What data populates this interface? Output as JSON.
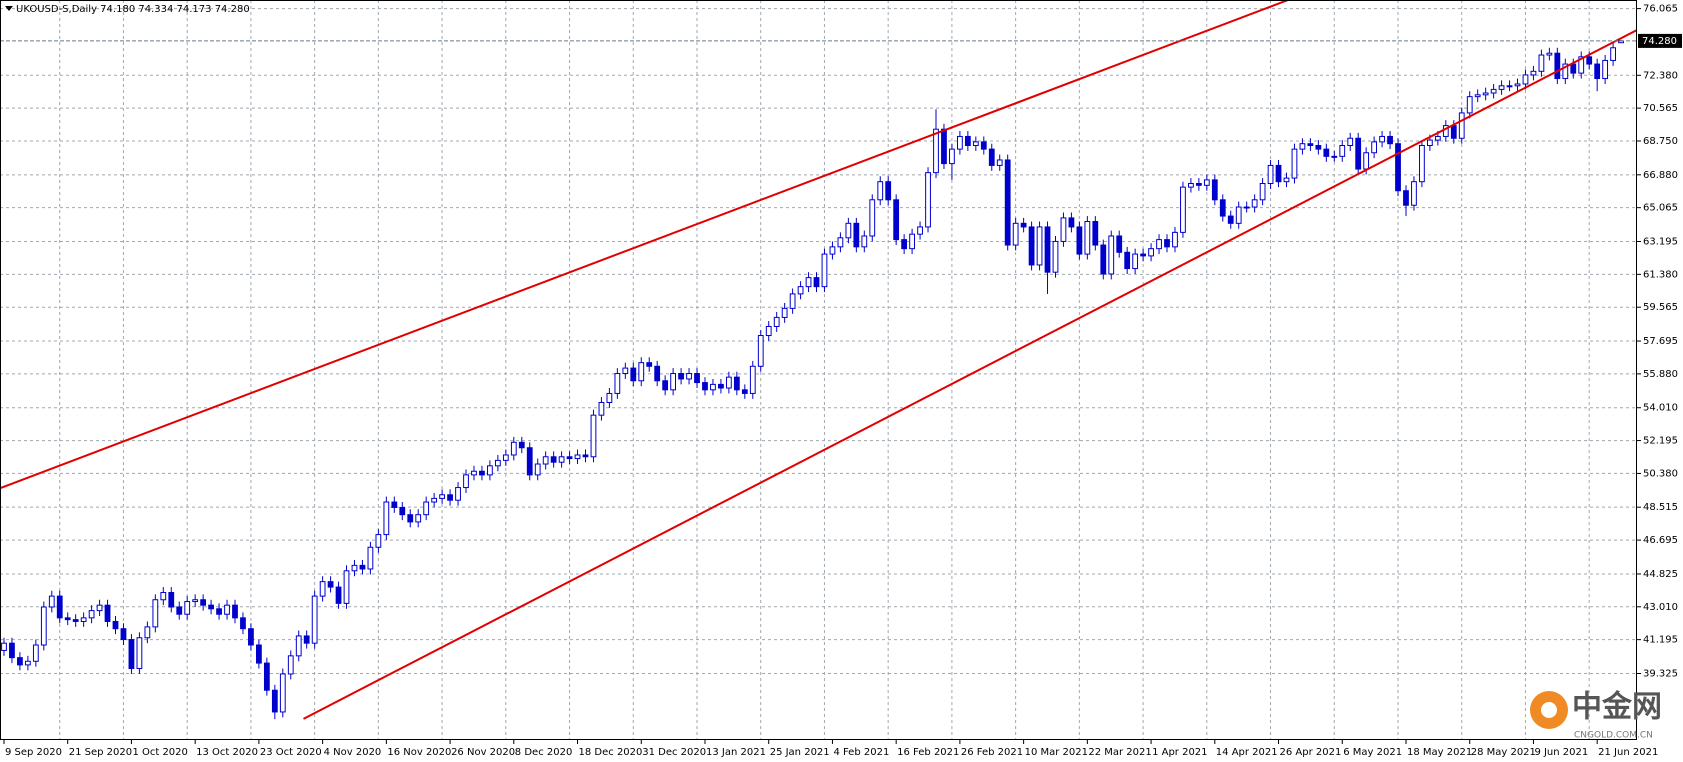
{
  "chart_data": {
    "type": "candlestick",
    "header": "UKOUSD-S,Daily  74.180 74.334 74.173 74.280",
    "up_color": "#ffffff",
    "down_color": "#0000cd",
    "wick_color": "#0000cd",
    "trendline_color": "#e00000",
    "grid": true,
    "xlim": [
      -0.5,
      205
    ],
    "ylim": [
      35.65,
      76.54
    ],
    "yticks": [
      76.065,
      {
        "value": 72.38,
        "label": "72.380"
      },
      70.565,
      {
        "value": 68.75,
        "label": "68.750"
      },
      {
        "value": 66.88,
        "label": "66.880"
      },
      65.065,
      63.195,
      {
        "value": 61.38,
        "label": "61.380"
      },
      59.565,
      57.695,
      {
        "value": 55.88,
        "label": "55.880"
      },
      {
        "value": 54.01,
        "label": "54.010"
      },
      52.195,
      {
        "value": 50.38,
        "label": "50.380"
      },
      48.515,
      46.695,
      44.825,
      {
        "value": 43.01,
        "label": "43.010"
      },
      41.195,
      39.325
    ],
    "xticks": [
      {
        "value": 0,
        "label": "9 Sep 2020"
      },
      {
        "value": 8,
        "label": "21 Sep 2020"
      },
      {
        "value": 16,
        "label": "1 Oct 2020"
      },
      {
        "value": 24,
        "label": "13 Oct 2020"
      },
      {
        "value": 32,
        "label": "23 Oct 2020"
      },
      {
        "value": 40,
        "label": "4 Nov 2020"
      },
      {
        "value": 48,
        "label": "16 Nov 2020"
      },
      {
        "value": 56,
        "label": "26 Nov 2020"
      },
      {
        "value": 64,
        "label": "8 Dec 2020"
      },
      {
        "value": 72,
        "label": "18 Dec 2020"
      },
      {
        "value": 80,
        "label": "31 Dec 2020"
      },
      {
        "value": 88,
        "label": "13 Jan 2021"
      },
      {
        "value": 96,
        "label": "25 Jan 2021"
      },
      {
        "value": 104,
        "label": "4 Feb 2021"
      },
      {
        "value": 112,
        "label": "16 Feb 2021"
      },
      {
        "value": 120,
        "label": "26 Feb 2021"
      },
      {
        "value": 128,
        "label": "10 Mar 2021"
      },
      {
        "value": 136,
        "label": "22 Mar 2021"
      },
      {
        "value": 144,
        "label": "1 Apr 2021"
      },
      {
        "value": 152,
        "label": "14 Apr 2021"
      },
      {
        "value": 160,
        "label": "26 Apr 2021"
      },
      {
        "value": 168,
        "label": "6 May 2021"
      },
      {
        "value": 176,
        "label": "18 May 2021"
      },
      {
        "value": 184,
        "label": "28 May 2021"
      },
      {
        "value": 192,
        "label": "9 Jun 2021"
      },
      {
        "value": 200,
        "label": "21 Jun 2021"
      }
    ],
    "price_line": {
      "value": 74.28,
      "label": "74.280"
    },
    "trendlines": [
      {
        "x": [
          -0.4,
          161.2
        ],
        "y": [
          49.58,
          76.54
        ]
      },
      {
        "x": [
          37.6,
          205
        ],
        "y": [
          36.82,
          74.88
        ]
      }
    ],
    "watermark": {
      "title": "中金网",
      "subtitle": "CNGOLD.COM.CN"
    },
    "open": [
      40.6,
      41.0,
      40.2,
      39.8,
      40.0,
      40.9,
      43.0,
      43.6,
      42.4,
      42.3,
      42.2,
      42.4,
      42.8,
      43.1,
      42.2,
      41.8,
      41.2,
      39.6,
      41.3,
      41.9,
      43.4,
      43.8,
      43.0,
      42.6,
      43.3,
      43.4,
      43.1,
      42.9,
      42.6,
      43.1,
      42.4,
      41.8,
      40.9,
      39.9,
      38.4,
      37.2,
      39.3,
      40.3,
      41.4,
      41.0,
      43.6,
      44.4,
      44.1,
      43.2,
      45.0,
      45.3,
      45.1,
      46.3,
      47.0,
      48.8,
      48.5,
      48.1,
      47.7,
      48.1,
      48.8,
      49.0,
      49.2,
      48.9,
      49.6,
      50.3,
      50.5,
      50.3,
      50.8,
      51.1,
      51.4,
      52.1,
      51.8,
      50.3,
      50.9,
      51.3,
      51.0,
      51.3,
      51.2,
      51.4,
      51.3,
      53.6,
      54.3,
      54.8,
      55.9,
      56.2,
      55.5,
      56.5,
      56.3,
      55.5,
      55.0,
      55.9,
      55.6,
      55.9,
      55.4,
      55.0,
      55.3,
      55.1,
      55.7,
      55.0,
      54.8,
      56.3,
      58.0,
      58.5,
      59.0,
      59.5,
      60.3,
      60.7,
      61.2,
      60.7,
      62.5,
      62.9,
      63.4,
      64.2,
      62.9,
      63.5,
      65.5,
      66.5,
      65.5,
      63.3,
      62.8,
      63.6,
      64.0,
      67.0,
      69.4,
      67.5,
      68.3,
      69.0,
      68.5,
      68.7,
      68.3,
      67.4,
      67.7,
      63.0,
      64.2,
      64.0,
      61.9,
      64.0,
      61.5,
      63.2,
      64.5,
      64.0,
      62.5,
      64.3,
      63.0,
      61.4,
      63.5,
      62.6,
      61.7,
      62.5,
      62.4,
      62.8,
      63.3,
      62.9,
      63.7,
      66.2,
      66.4,
      66.3,
      66.6,
      65.5,
      64.6,
      64.2,
      65.1,
      65.1,
      65.5,
      66.4,
      67.4,
      66.5,
      66.7,
      68.3,
      68.6,
      68.5,
      68.3,
      67.9,
      67.9,
      68.5,
      68.9,
      67.2,
      68.1,
      68.7,
      69.0,
      68.6,
      66.0,
      65.2,
      66.5,
      68.5,
      68.8,
      69.0,
      69.6,
      68.9,
      70.3,
      71.2,
      71.3,
      71.4,
      71.6,
      71.8,
      71.8,
      71.9,
      72.4,
      72.6,
      73.5,
      73.6,
      72.2,
      73.0,
      72.5,
      73.4,
      73.0,
      72.2,
      73.2,
      74.18
    ],
    "high": [
      41.3,
      41.3,
      40.5,
      40.3,
      41.2,
      43.3,
      43.9,
      43.9,
      42.7,
      42.6,
      42.7,
      43.1,
      43.4,
      43.4,
      42.5,
      42.1,
      41.5,
      41.6,
      42.2,
      43.7,
      44.1,
      44.1,
      43.3,
      43.6,
      43.7,
      43.7,
      43.4,
      43.2,
      43.4,
      43.4,
      42.7,
      42.1,
      41.2,
      40.2,
      38.7,
      39.6,
      40.6,
      41.7,
      41.7,
      43.9,
      44.7,
      44.7,
      44.4,
      45.3,
      45.6,
      45.6,
      46.6,
      47.3,
      49.1,
      49.1,
      48.8,
      48.4,
      48.4,
      49.1,
      49.3,
      49.5,
      49.5,
      49.9,
      50.6,
      50.8,
      50.8,
      51.1,
      51.4,
      51.7,
      52.4,
      52.4,
      52.1,
      51.2,
      51.6,
      51.6,
      51.6,
      51.6,
      51.7,
      51.7,
      53.9,
      54.6,
      55.1,
      56.2,
      56.5,
      56.5,
      56.8,
      56.8,
      56.6,
      55.8,
      56.2,
      56.2,
      56.2,
      56.2,
      55.7,
      55.6,
      55.6,
      56.0,
      56.0,
      55.3,
      56.6,
      58.3,
      58.8,
      59.3,
      59.8,
      60.6,
      61.0,
      61.5,
      61.5,
      62.8,
      63.2,
      63.7,
      64.5,
      64.5,
      63.8,
      65.8,
      66.8,
      66.8,
      65.8,
      63.6,
      63.9,
      64.3,
      67.3,
      70.5,
      69.7,
      68.6,
      69.3,
      69.3,
      69.0,
      69.0,
      68.6,
      68.0,
      68.0,
      64.5,
      64.5,
      64.3,
      64.3,
      64.3,
      63.5,
      64.8,
      64.8,
      64.3,
      64.6,
      64.6,
      63.3,
      63.8,
      63.8,
      62.9,
      62.8,
      62.8,
      63.1,
      63.6,
      63.6,
      64.0,
      66.5,
      66.7,
      66.7,
      66.9,
      66.9,
      65.8,
      64.9,
      65.4,
      65.4,
      65.8,
      66.7,
      67.7,
      67.7,
      67.0,
      68.6,
      68.9,
      68.9,
      68.8,
      68.6,
      68.2,
      68.8,
      69.2,
      69.2,
      68.4,
      69.0,
      69.3,
      69.3,
      68.9,
      66.3,
      66.8,
      68.8,
      69.1,
      69.3,
      69.9,
      69.9,
      70.6,
      71.5,
      71.6,
      71.7,
      71.9,
      72.1,
      72.1,
      72.2,
      72.7,
      72.9,
      73.8,
      73.9,
      73.9,
      73.3,
      73.3,
      73.7,
      73.7,
      73.3,
      73.5,
      74.2,
      74.334
    ],
    "low": [
      40.3,
      39.9,
      39.5,
      39.5,
      39.7,
      40.6,
      42.7,
      42.1,
      42.0,
      41.9,
      41.9,
      42.1,
      42.5,
      41.9,
      41.5,
      40.9,
      39.3,
      39.3,
      41.0,
      41.6,
      43.1,
      42.7,
      42.3,
      42.3,
      43.0,
      42.8,
      42.6,
      42.3,
      42.3,
      42.1,
      41.5,
      40.6,
      39.6,
      38.1,
      36.8,
      36.9,
      39.0,
      40.0,
      40.7,
      40.7,
      43.3,
      43.8,
      42.9,
      42.9,
      44.7,
      44.8,
      44.8,
      46.0,
      46.7,
      48.2,
      47.8,
      47.4,
      47.4,
      47.8,
      48.5,
      48.7,
      48.6,
      48.6,
      49.3,
      50.0,
      50.0,
      50.0,
      50.5,
      50.8,
      51.1,
      51.5,
      50.0,
      50.0,
      50.6,
      50.7,
      50.7,
      50.9,
      50.9,
      51.0,
      51.0,
      53.3,
      54.0,
      54.5,
      55.6,
      55.2,
      55.2,
      56.0,
      55.2,
      54.7,
      54.7,
      55.3,
      55.3,
      55.1,
      54.7,
      54.7,
      54.8,
      54.8,
      54.7,
      54.5,
      54.5,
      56.0,
      57.7,
      58.2,
      58.7,
      59.2,
      60.0,
      60.4,
      60.4,
      60.4,
      62.2,
      62.6,
      63.1,
      62.6,
      62.6,
      63.2,
      65.2,
      65.2,
      63.0,
      62.5,
      62.5,
      63.3,
      63.7,
      66.7,
      67.2,
      66.6,
      68.0,
      68.2,
      68.2,
      68.0,
      67.1,
      67.1,
      62.7,
      62.7,
      63.7,
      61.6,
      61.6,
      60.3,
      61.2,
      62.9,
      63.7,
      62.2,
      62.2,
      62.7,
      61.1,
      61.1,
      62.3,
      61.4,
      61.4,
      62.1,
      62.1,
      62.5,
      62.6,
      62.6,
      63.4,
      65.9,
      66.0,
      66.0,
      65.2,
      64.3,
      63.9,
      63.9,
      64.8,
      64.8,
      65.2,
      66.1,
      66.2,
      66.2,
      66.4,
      68.0,
      68.2,
      68.0,
      67.6,
      67.6,
      67.6,
      68.2,
      66.9,
      66.9,
      67.8,
      68.4,
      68.3,
      65.7,
      64.6,
      64.9,
      66.2,
      68.2,
      68.5,
      68.7,
      68.6,
      68.6,
      70.0,
      70.9,
      71.0,
      71.1,
      71.3,
      71.5,
      71.5,
      71.6,
      72.1,
      72.3,
      73.2,
      71.9,
      71.9,
      72.2,
      72.2,
      72.7,
      71.5,
      71.9,
      72.9,
      74.173
    ],
    "close": [
      41.0,
      40.2,
      39.8,
      40.0,
      40.9,
      43.0,
      43.6,
      42.4,
      42.3,
      42.2,
      42.4,
      42.8,
      43.1,
      42.2,
      41.8,
      41.2,
      39.6,
      41.3,
      41.9,
      43.4,
      43.8,
      43.0,
      42.6,
      43.3,
      43.4,
      43.1,
      42.9,
      42.6,
      43.1,
      42.4,
      41.8,
      40.9,
      39.9,
      38.4,
      37.2,
      39.3,
      40.3,
      41.4,
      41.0,
      43.6,
      44.4,
      44.1,
      43.2,
      45.0,
      45.3,
      45.1,
      46.3,
      47.0,
      48.8,
      48.5,
      48.1,
      47.7,
      48.1,
      48.8,
      49.0,
      49.2,
      48.9,
      49.6,
      50.3,
      50.5,
      50.3,
      50.8,
      51.1,
      51.4,
      52.1,
      51.8,
      50.3,
      50.9,
      51.3,
      51.0,
      51.3,
      51.2,
      51.4,
      51.3,
      53.6,
      54.3,
      54.8,
      55.9,
      56.2,
      55.5,
      56.5,
      56.3,
      55.5,
      55.0,
      55.9,
      55.6,
      55.9,
      55.4,
      55.0,
      55.3,
      55.1,
      55.7,
      55.0,
      54.8,
      56.3,
      58.0,
      58.5,
      59.0,
      59.5,
      60.3,
      60.7,
      61.2,
      60.7,
      62.5,
      62.9,
      63.4,
      64.2,
      62.9,
      63.5,
      65.5,
      66.5,
      65.5,
      63.3,
      62.8,
      63.6,
      64.0,
      67.0,
      69.4,
      67.5,
      68.3,
      69.0,
      68.5,
      68.7,
      68.3,
      67.4,
      67.7,
      63.0,
      64.2,
      64.0,
      61.9,
      64.0,
      61.5,
      63.2,
      64.5,
      64.0,
      62.5,
      64.3,
      63.0,
      61.4,
      63.5,
      62.6,
      61.7,
      62.5,
      62.4,
      62.8,
      63.3,
      62.9,
      63.7,
      66.2,
      66.4,
      66.3,
      66.6,
      65.5,
      64.6,
      64.2,
      65.1,
      65.1,
      65.5,
      66.4,
      67.4,
      66.5,
      66.7,
      68.3,
      68.6,
      68.5,
      68.3,
      67.9,
      67.9,
      68.5,
      68.9,
      67.2,
      68.1,
      68.7,
      69.0,
      68.6,
      66.0,
      65.2,
      66.5,
      68.5,
      68.8,
      69.0,
      69.6,
      68.9,
      70.3,
      71.2,
      71.3,
      71.4,
      71.6,
      71.8,
      71.8,
      71.9,
      72.4,
      72.6,
      73.5,
      73.6,
      72.2,
      73.0,
      72.5,
      73.4,
      73.0,
      72.2,
      73.2,
      73.9,
      74.28
    ]
  }
}
